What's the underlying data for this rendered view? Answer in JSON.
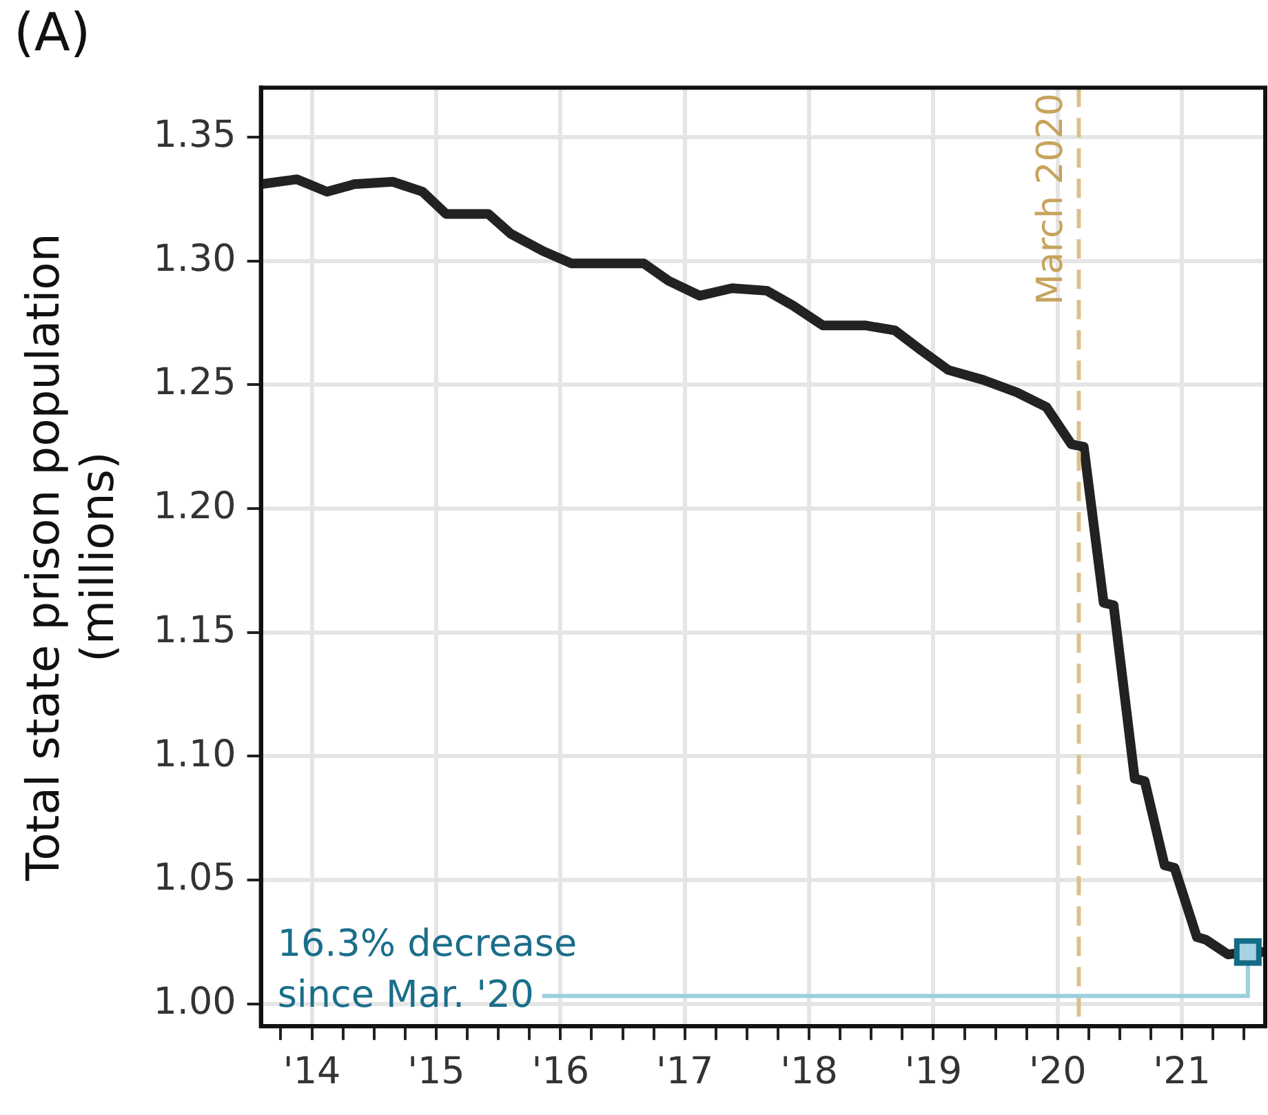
{
  "chart_data": {
    "type": "line",
    "title": "(A)",
    "ylabel": "Total state prison population\n(millions)",
    "x": [
      2013.59,
      2013.88,
      2014.12,
      2014.34,
      2014.65,
      2014.89,
      2015.08,
      2015.42,
      2015.6,
      2015.86,
      2016.09,
      2016.39,
      2016.67,
      2016.87,
      2017.12,
      2017.38,
      2017.66,
      2017.87,
      2018.11,
      2018.45,
      2018.69,
      2018.9,
      2019.12,
      2019.4,
      2019.67,
      2019.91,
      2020.11,
      2020.21,
      2020.37,
      2020.45,
      2020.62,
      2020.7,
      2020.86,
      2020.94,
      2021.12,
      2021.19,
      2021.37,
      2021.53,
      2021.67
    ],
    "series": [
      {
        "color": "#222222",
        "values": [
          1.331,
          1.333,
          1.328,
          1.331,
          1.332,
          1.328,
          1.319,
          1.319,
          1.311,
          1.304,
          1.299,
          1.299,
          1.299,
          1.292,
          1.286,
          1.289,
          1.288,
          1.282,
          1.274,
          1.274,
          1.272,
          1.264,
          1.256,
          1.252,
          1.247,
          1.241,
          1.226,
          1.225,
          1.162,
          1.161,
          1.091,
          1.09,
          1.056,
          1.055,
          1.027,
          1.026,
          1.02,
          1.021,
          1.021
        ]
      }
    ],
    "xlim": [
      2013.59,
      2021.67
    ],
    "xticks": [
      {
        "value": 2013.75,
        "label": null
      },
      {
        "value": 2014,
        "label": "'14"
      },
      {
        "value": 2014.25,
        "label": null
      },
      {
        "value": 2014.5,
        "label": null
      },
      {
        "value": 2014.75,
        "label": null
      },
      {
        "value": 2015,
        "label": "'15"
      },
      {
        "value": 2015.25,
        "label": null
      },
      {
        "value": 2015.5,
        "label": null
      },
      {
        "value": 2015.75,
        "label": null
      },
      {
        "value": 2016,
        "label": "'16"
      },
      {
        "value": 2016.25,
        "label": null
      },
      {
        "value": 2016.5,
        "label": null
      },
      {
        "value": 2016.75,
        "label": null
      },
      {
        "value": 2017,
        "label": "'17"
      },
      {
        "value": 2017.25,
        "label": null
      },
      {
        "value": 2017.5,
        "label": null
      },
      {
        "value": 2017.75,
        "label": null
      },
      {
        "value": 2018,
        "label": "'18"
      },
      {
        "value": 2018.25,
        "label": null
      },
      {
        "value": 2018.5,
        "label": null
      },
      {
        "value": 2018.75,
        "label": null
      },
      {
        "value": 2019,
        "label": "'19"
      },
      {
        "value": 2019.25,
        "label": null
      },
      {
        "value": 2019.5,
        "label": null
      },
      {
        "value": 2019.75,
        "label": null
      },
      {
        "value": 2020,
        "label": "'20"
      },
      {
        "value": 2020.25,
        "label": null
      },
      {
        "value": 2020.5,
        "label": null
      },
      {
        "value": 2020.75,
        "label": null
      },
      {
        "value": 2021,
        "label": "'21"
      },
      {
        "value": 2021.25,
        "label": null
      },
      {
        "value": 2021.5,
        "label": null
      }
    ],
    "ylim": [
      0.991,
      1.37
    ],
    "yticks": [
      {
        "value": 1.0,
        "label": "1.00"
      },
      {
        "value": 1.05,
        "label": "1.05"
      },
      {
        "value": 1.1,
        "label": "1.10"
      },
      {
        "value": 1.15,
        "label": "1.15"
      },
      {
        "value": 1.2,
        "label": "1.20"
      },
      {
        "value": 1.25,
        "label": "1.25"
      },
      {
        "value": 1.3,
        "label": "1.30"
      },
      {
        "value": 1.35,
        "label": "1.35"
      }
    ],
    "grid": true,
    "legend": false,
    "marker": "none",
    "line_style": "solid",
    "ref_lines": [
      {
        "axis": "x",
        "value": 2020.17,
        "label": "March 2020",
        "color": "#dcc08a",
        "line_style": "dashed"
      }
    ],
    "annotations": [
      {
        "text": "16.3% decrease\nsince Mar. '20",
        "x": 2021.53,
        "y": 1.021
      }
    ]
  }
}
